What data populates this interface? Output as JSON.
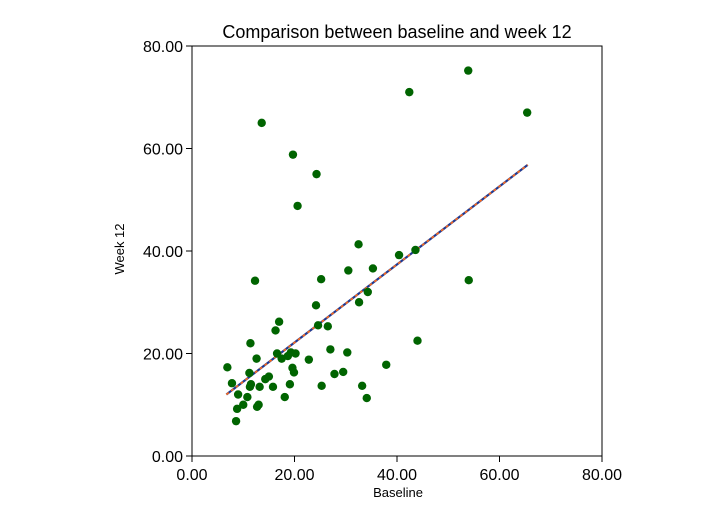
{
  "chart_data": {
    "type": "scatter",
    "title": "Comparison between baseline and week 12",
    "xlabel": "Baseline",
    "ylabel": "Week 12",
    "xlim": [
      0,
      80
    ],
    "ylim": [
      0,
      80
    ],
    "xticks": [
      "0.00",
      "20.00",
      "40.00",
      "60.00",
      "80.00"
    ],
    "yticks": [
      "0.00",
      "20.00",
      "40.00",
      "60.00",
      "80.00"
    ],
    "grid": false,
    "colors": {
      "points": "#006400",
      "fit_line": "#1f3a93",
      "fit_line_dash": "#ff6a1a"
    },
    "points": [
      [
        6.9,
        17.3
      ],
      [
        7.8,
        14.2
      ],
      [
        8.6,
        6.8
      ],
      [
        8.8,
        9.2
      ],
      [
        9.0,
        12.0
      ],
      [
        10.0,
        10.0
      ],
      [
        10.8,
        11.5
      ],
      [
        11.2,
        16.2
      ],
      [
        11.3,
        13.5
      ],
      [
        11.4,
        22.0
      ],
      [
        11.5,
        14.0
      ],
      [
        12.3,
        34.2
      ],
      [
        12.6,
        19.0
      ],
      [
        12.7,
        9.6
      ],
      [
        13.0,
        10.0
      ],
      [
        13.2,
        13.5
      ],
      [
        13.6,
        65.0
      ],
      [
        14.3,
        15.0
      ],
      [
        15.0,
        15.5
      ],
      [
        15.8,
        13.5
      ],
      [
        16.3,
        24.5
      ],
      [
        16.6,
        20.0
      ],
      [
        17.0,
        26.2
      ],
      [
        17.5,
        19.0
      ],
      [
        18.1,
        11.5
      ],
      [
        18.7,
        19.5
      ],
      [
        19.1,
        14.0
      ],
      [
        19.3,
        20.2
      ],
      [
        19.6,
        17.2
      ],
      [
        19.7,
        58.8
      ],
      [
        19.9,
        16.3
      ],
      [
        20.2,
        20.0
      ],
      [
        20.6,
        48.8
      ],
      [
        22.8,
        18.8
      ],
      [
        24.2,
        29.4
      ],
      [
        24.3,
        55.0
      ],
      [
        24.6,
        25.5
      ],
      [
        25.2,
        34.5
      ],
      [
        25.3,
        13.7
      ],
      [
        26.5,
        25.3
      ],
      [
        27.0,
        20.8
      ],
      [
        27.8,
        16.0
      ],
      [
        29.5,
        16.4
      ],
      [
        30.3,
        20.2
      ],
      [
        30.5,
        36.2
      ],
      [
        32.5,
        41.3
      ],
      [
        32.6,
        30.0
      ],
      [
        33.2,
        13.7
      ],
      [
        34.1,
        11.3
      ],
      [
        34.3,
        32.0
      ],
      [
        35.3,
        36.6
      ],
      [
        37.9,
        17.8
      ],
      [
        40.4,
        39.2
      ],
      [
        42.4,
        71.0
      ],
      [
        43.6,
        40.2
      ],
      [
        44.0,
        22.5
      ],
      [
        53.9,
        75.2
      ],
      [
        54.0,
        34.3
      ],
      [
        65.4,
        67.0
      ]
    ],
    "fit_line": {
      "x": [
        6.7,
        65.5
      ],
      "y": [
        12.0,
        56.8
      ]
    }
  }
}
